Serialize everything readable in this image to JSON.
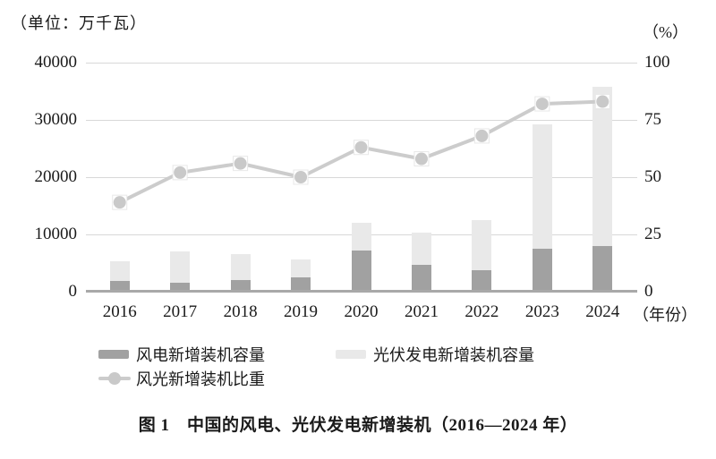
{
  "unit_left": "（单位：万千瓦）",
  "unit_right": "（%）",
  "x_axis_suffix": "（年份）",
  "caption": "图 1　中国的风电、光伏发电新增装机（2016—2024 年）",
  "colors": {
    "wind_bar": "#a1a1a1",
    "solar_bar": "#e9e9e9",
    "share_line": "#cccccc",
    "marker_fill": "#c9c9c9",
    "marker_halo": "#e8e8e8",
    "grid": "#d8d8d8",
    "axis": "#a9a9a9",
    "text": "#1a1a1a"
  },
  "legend": {
    "wind_label": "风电新增装机容量",
    "solar_label": "光伏发电新增装机容量",
    "share_label": "风光新增装机比重"
  },
  "chart_data": {
    "type": "bar",
    "subtype": "stacked-bars-with-line",
    "title": "图 1　中国的风电、光伏发电新增装机（2016—2024 年）",
    "categories": [
      "2016",
      "2017",
      "2018",
      "2019",
      "2020",
      "2021",
      "2022",
      "2023",
      "2024"
    ],
    "series": [
      {
        "name": "风电新增装机容量",
        "type": "bar",
        "stack": "new-capacity",
        "axis": "left",
        "values": [
          1930,
          1500,
          2060,
          2570,
          7170,
          4760,
          3760,
          7570,
          7980
        ]
      },
      {
        "name": "光伏发电新增装机容量",
        "type": "bar",
        "stack": "new-capacity",
        "axis": "left",
        "values": [
          3450,
          5500,
          4430,
          3010,
          4820,
          5490,
          8740,
          21690,
          27760
        ]
      },
      {
        "name": "风光新增装机比重",
        "type": "line",
        "axis": "right",
        "values": [
          39,
          52,
          56,
          50,
          63,
          58,
          68,
          82,
          83
        ]
      }
    ],
    "left_axis": {
      "title": "（单位：万千瓦）",
      "range": [
        0,
        40000
      ],
      "ticks": [
        0,
        10000,
        20000,
        30000,
        40000
      ]
    },
    "right_axis": {
      "title": "（%）",
      "range": [
        0,
        100
      ],
      "ticks": [
        0,
        25,
        50,
        75,
        100
      ]
    },
    "x_axis": {
      "title": "（年份）"
    },
    "grid": true,
    "legend_position": "bottom"
  }
}
